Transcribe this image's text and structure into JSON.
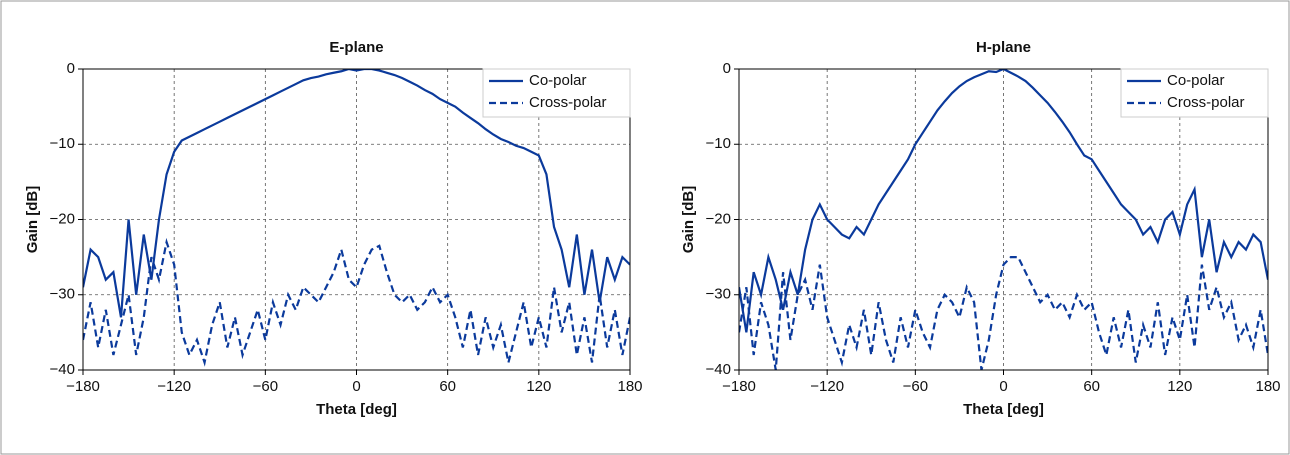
{
  "chart_data": [
    {
      "type": "line",
      "title": "E-plane",
      "x_label": "Theta [deg]",
      "y_label": "Gain [dB]",
      "x": [
        -180,
        -175,
        -170,
        -165,
        -160,
        -155,
        -150,
        -145,
        -140,
        -135,
        -130,
        -125,
        -120,
        -115,
        -110,
        -105,
        -100,
        -95,
        -90,
        -85,
        -80,
        -75,
        -70,
        -65,
        -60,
        -55,
        -50,
        -45,
        -40,
        -35,
        -30,
        -25,
        -20,
        -15,
        -10,
        -5,
        0,
        5,
        10,
        15,
        20,
        25,
        30,
        35,
        40,
        45,
        50,
        55,
        60,
        65,
        70,
        75,
        80,
        85,
        90,
        95,
        100,
        105,
        110,
        115,
        120,
        125,
        130,
        135,
        140,
        145,
        150,
        155,
        160,
        165,
        170,
        175,
        180
      ],
      "series": [
        {
          "name": "Co-polar",
          "color": "#0b3a9c",
          "linestyle": "solid",
          "values": [
            -29,
            -24,
            -25,
            -28,
            -27,
            -33,
            -20,
            -30,
            -22,
            -28,
            -20,
            -14,
            -11,
            -9.5,
            -9,
            -8.5,
            -8,
            -7.5,
            -7,
            -6.5,
            -6,
            -5.5,
            -5,
            -4.5,
            -4,
            -3.5,
            -3,
            -2.5,
            -2,
            -1.5,
            -1.2,
            -1,
            -0.7,
            -0.5,
            -0.3,
            0,
            -0.2,
            0,
            0,
            -0.2,
            -0.5,
            -0.8,
            -1.2,
            -1.7,
            -2.2,
            -2.8,
            -3.3,
            -4,
            -4.5,
            -5,
            -5.8,
            -6.5,
            -7.2,
            -8,
            -8.7,
            -9.3,
            -9.7,
            -10.2,
            -10.5,
            -11,
            -11.5,
            -14,
            -21,
            -24,
            -29,
            -22,
            -30,
            -24,
            -31,
            -25,
            -28,
            -25,
            -26
          ]
        },
        {
          "name": "Cross-polar",
          "color": "#0b3a9c",
          "linestyle": "dashed",
          "values": [
            -36,
            -31,
            -37,
            -32,
            -38,
            -34,
            -30,
            -38,
            -33,
            -25,
            -28,
            -23,
            -26,
            -35,
            -38,
            -36,
            -39,
            -34,
            -31,
            -37,
            -33,
            -38,
            -35,
            -32,
            -36,
            -31,
            -34,
            -30,
            -32,
            -29,
            -30,
            -31,
            -29,
            -27,
            -24,
            -28,
            -29,
            -26,
            -24,
            -23.5,
            -27,
            -30,
            -31,
            -30,
            -32,
            -31,
            -29,
            -31,
            -30,
            -33,
            -37,
            -32,
            -38,
            -33,
            -37,
            -34,
            -39,
            -35,
            -31,
            -37,
            -33,
            -37,
            -29,
            -35,
            -31,
            -38,
            -33,
            -39,
            -30,
            -37,
            -32,
            -38,
            -33
          ]
        }
      ],
      "xlim": [
        -180,
        180
      ],
      "ylim": [
        -40,
        0
      ],
      "xticks": [
        {
          "value": -180,
          "label": "−180"
        },
        {
          "value": -120,
          "label": "−120"
        },
        {
          "value": -60,
          "label": "−60"
        },
        0,
        60,
        120,
        180
      ],
      "yticks": [
        {
          "value": -40,
          "label": "−40"
        },
        {
          "value": -30,
          "label": "−30"
        },
        {
          "value": -20,
          "label": "−20"
        },
        {
          "value": -10,
          "label": "−10"
        },
        0
      ],
      "grid": true,
      "legend": "upper right"
    },
    {
      "type": "line",
      "title": "H-plane",
      "x_label": "Theta [deg]",
      "y_label": "Gain [dB]",
      "x": [
        -180,
        -175,
        -170,
        -165,
        -160,
        -155,
        -150,
        -145,
        -140,
        -135,
        -130,
        -125,
        -120,
        -115,
        -110,
        -105,
        -100,
        -95,
        -90,
        -85,
        -80,
        -75,
        -70,
        -65,
        -60,
        -55,
        -50,
        -45,
        -40,
        -35,
        -30,
        -25,
        -20,
        -15,
        -10,
        -5,
        0,
        5,
        10,
        15,
        20,
        25,
        30,
        35,
        40,
        45,
        50,
        55,
        60,
        65,
        70,
        75,
        80,
        85,
        90,
        95,
        100,
        105,
        110,
        115,
        120,
        125,
        130,
        135,
        140,
        145,
        150,
        155,
        160,
        165,
        170,
        175,
        180
      ],
      "series": [
        {
          "name": "Co-polar",
          "color": "#0b3a9c",
          "linestyle": "solid",
          "values": [
            -29,
            -35,
            -27,
            -30,
            -25,
            -28,
            -32,
            -27,
            -30,
            -24,
            -20,
            -18,
            -20,
            -21,
            -22,
            -22.5,
            -21,
            -22,
            -20,
            -18,
            -16.5,
            -15,
            -13.5,
            -12,
            -10,
            -8.5,
            -7,
            -5.5,
            -4.3,
            -3.2,
            -2.3,
            -1.6,
            -1.1,
            -0.7,
            -0.3,
            -0.4,
            0,
            -0.5,
            -1,
            -1.6,
            -2.5,
            -3.5,
            -4.5,
            -5.7,
            -7,
            -8.4,
            -10,
            -11.5,
            -12,
            -13.5,
            -15,
            -16.5,
            -18,
            -19,
            -20,
            -22,
            -21,
            -23,
            -20,
            -19,
            -22,
            -18,
            -16,
            -25,
            -20,
            -27,
            -23,
            -25,
            -23,
            -24,
            -22,
            -23,
            -28
          ]
        },
        {
          "name": "Cross-polar",
          "color": "#0b3a9c",
          "linestyle": "dashed",
          "values": [
            -35,
            -29,
            -38,
            -31,
            -34,
            -40,
            -27,
            -36,
            -30,
            -28,
            -32,
            -26,
            -33,
            -36,
            -39,
            -34,
            -37,
            -32,
            -38,
            -31,
            -36,
            -39,
            -33,
            -37,
            -32,
            -35,
            -37,
            -32,
            -30,
            -31,
            -33,
            -29,
            -31,
            -40,
            -36,
            -30,
            -26,
            -25,
            -25,
            -27,
            -29,
            -31,
            -30,
            -32,
            -31,
            -33,
            -30,
            -32,
            -31,
            -35,
            -38,
            -33,
            -37,
            -32,
            -39,
            -34,
            -37,
            -31,
            -38,
            -33,
            -36,
            -30,
            -37,
            -26,
            -32,
            -29,
            -33,
            -31,
            -36,
            -34,
            -37,
            -32,
            -38
          ]
        }
      ],
      "xlim": [
        -180,
        180
      ],
      "ylim": [
        -40,
        0
      ],
      "xticks": [
        {
          "value": -180,
          "label": "−180"
        },
        {
          "value": -120,
          "label": "−120"
        },
        {
          "value": -60,
          "label": "−60"
        },
        0,
        60,
        120,
        180
      ],
      "yticks": [
        {
          "value": -40,
          "label": "−40"
        },
        {
          "value": -30,
          "label": "−30"
        },
        {
          "value": -20,
          "label": "−20"
        },
        {
          "value": -10,
          "label": "−10"
        },
        0
      ],
      "grid": true,
      "legend": "upper right"
    }
  ]
}
